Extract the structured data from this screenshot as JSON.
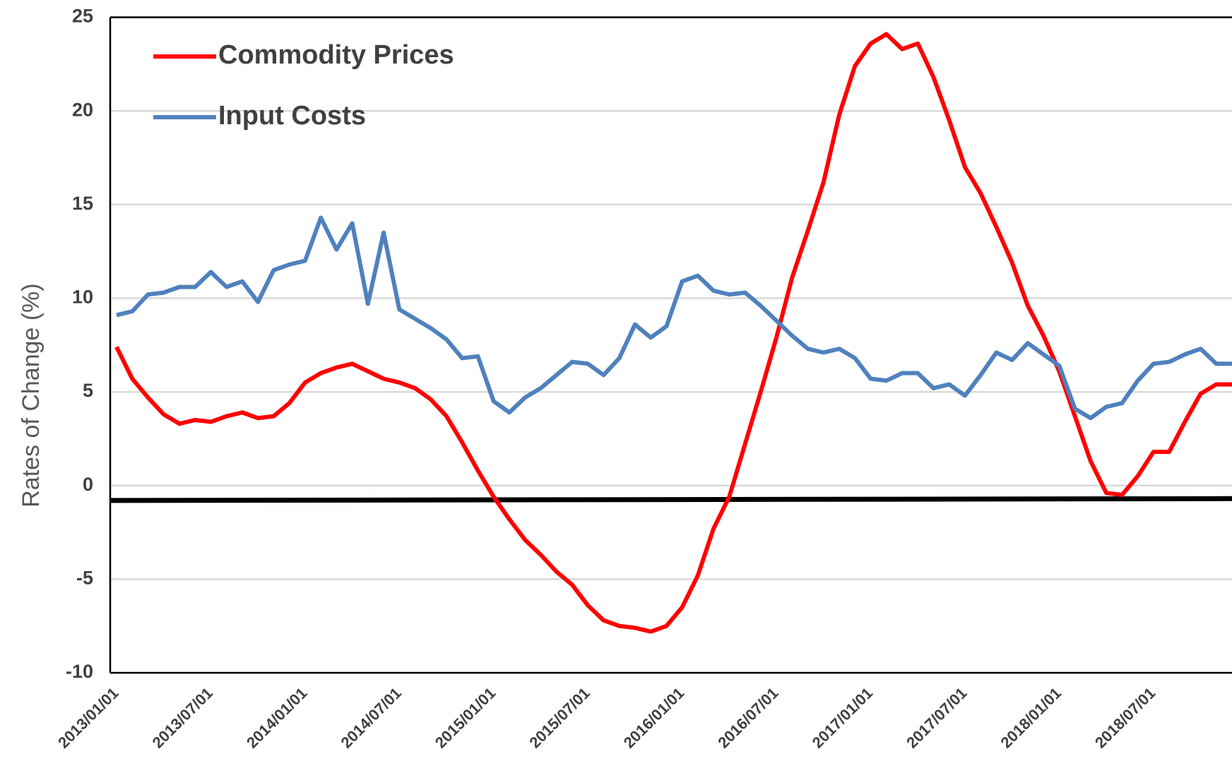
{
  "chart_data": {
    "type": "line",
    "y_axis_label": "Rates of Change (%)",
    "categories": [
      "2013/01/01",
      null,
      null,
      null,
      null,
      null,
      "2013/07/01",
      null,
      null,
      null,
      null,
      null,
      "2014/01/01",
      null,
      null,
      null,
      null,
      null,
      "2014/07/01",
      null,
      null,
      null,
      null,
      null,
      "2015/01/01",
      null,
      null,
      null,
      null,
      null,
      "2015/07/01",
      null,
      null,
      null,
      null,
      null,
      "2016/01/01",
      null,
      null,
      null,
      null,
      null,
      "2016/07/01",
      null,
      null,
      null,
      null,
      null,
      "2017/01/01",
      null,
      null,
      null,
      null,
      null,
      "2017/07/01",
      null,
      null,
      null,
      null,
      null,
      "2018/01/01",
      null,
      null,
      null,
      null,
      null,
      "2018/07/01",
      null,
      null,
      null,
      null,
      null
    ],
    "series": [
      {
        "name": "Commodity Prices",
        "color": "#ff0000",
        "values": [
          7.4,
          5.7,
          4.7,
          3.8,
          3.3,
          3.5,
          3.4,
          3.7,
          3.9,
          3.6,
          3.7,
          4.4,
          5.5,
          6.0,
          6.3,
          6.5,
          6.1,
          5.7,
          5.5,
          5.2,
          4.6,
          3.7,
          2.3,
          0.8,
          -0.6,
          -1.8,
          -2.9,
          -3.7,
          -4.6,
          -5.3,
          -6.4,
          -7.2,
          -7.5,
          -7.6,
          -7.8,
          -7.5,
          -6.5,
          -4.8,
          -2.3,
          -0.6,
          2.2,
          5.0,
          7.9,
          11.1,
          13.6,
          16.2,
          19.8,
          22.4,
          23.6,
          24.1,
          23.3,
          23.6,
          21.8,
          19.5,
          17.0,
          15.6,
          13.8,
          11.9,
          9.6,
          8.0,
          6.1,
          3.7,
          1.3,
          -0.4,
          -0.5,
          0.5,
          1.8,
          1.8,
          3.4,
          4.9,
          5.4,
          5.4
        ]
      },
      {
        "name": "Input Costs",
        "color": "#4f81bd",
        "values": [
          9.1,
          9.3,
          10.2,
          10.3,
          10.6,
          10.6,
          11.4,
          10.6,
          10.9,
          9.8,
          11.5,
          11.8,
          12.0,
          14.3,
          12.6,
          14.0,
          9.7,
          13.5,
          9.4,
          8.9,
          8.4,
          7.8,
          6.8,
          6.9,
          4.5,
          3.9,
          4.7,
          5.2,
          5.9,
          6.6,
          6.5,
          5.9,
          6.8,
          8.6,
          7.9,
          8.5,
          10.9,
          11.2,
          10.4,
          10.2,
          10.3,
          9.6,
          8.8,
          8.0,
          7.3,
          7.1,
          7.3,
          6.8,
          5.7,
          5.6,
          6.0,
          6.0,
          5.2,
          5.4,
          4.8,
          5.9,
          7.1,
          6.7,
          7.6,
          7.0,
          6.4,
          4.1,
          3.6,
          4.2,
          4.4,
          5.6,
          6.5,
          6.6,
          7.0,
          7.3,
          6.5,
          6.5
        ]
      }
    ],
    "reference_line": {
      "color": "#000000",
      "values": [
        -0.8,
        -0.7
      ]
    },
    "ylim": [
      -10,
      25
    ],
    "yticks": [
      -10,
      -5,
      0,
      5,
      10,
      15,
      20,
      25
    ],
    "grid": true,
    "legend": "upper left"
  }
}
